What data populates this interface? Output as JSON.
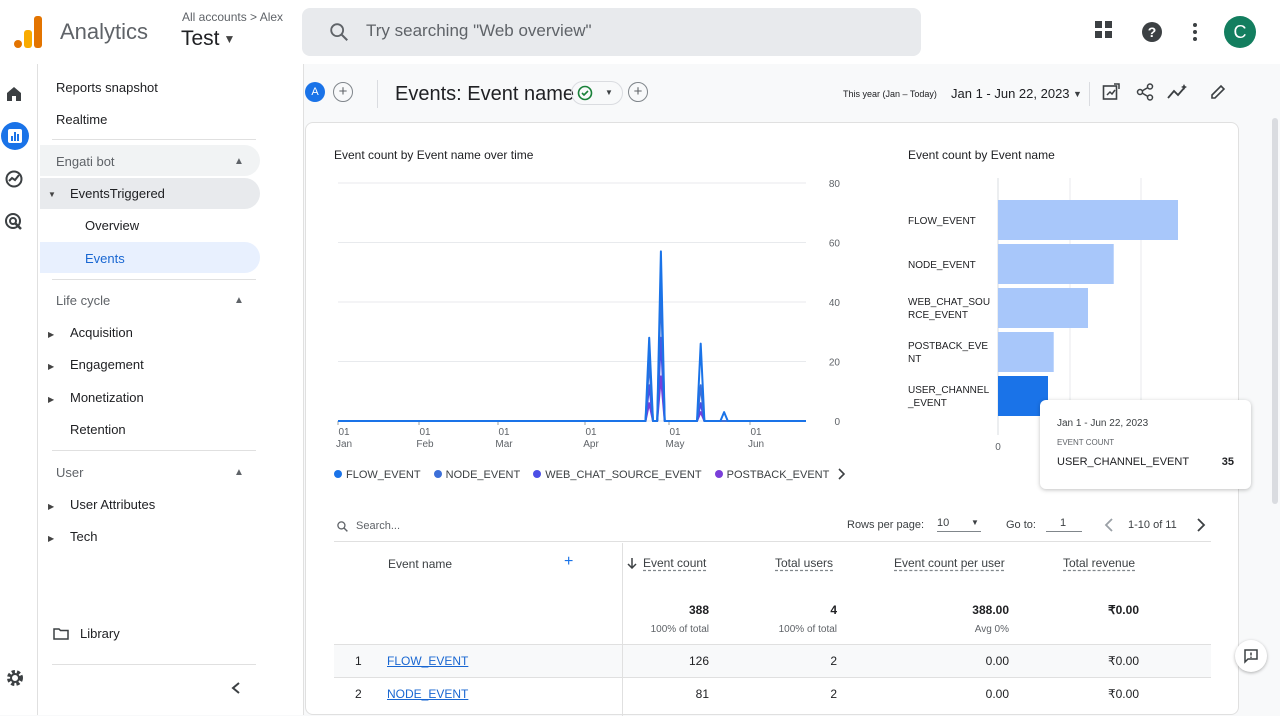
{
  "app": {
    "name": "Analytics",
    "breadcrumb": "All accounts > Alex",
    "property": "Test"
  },
  "search": {
    "placeholder": "Try searching \"Web overview\""
  },
  "user": {
    "avatar_letter": "C"
  },
  "nav": {
    "reports_snapshot": "Reports snapshot",
    "realtime": "Realtime",
    "group1": {
      "title": "Engati bot",
      "folder": "EventsTriggered",
      "items": [
        "Overview",
        "Events"
      ]
    },
    "group2": {
      "title": "Life cycle",
      "items": [
        "Acquisition",
        "Engagement",
        "Monetization",
        "Retention"
      ]
    },
    "group3": {
      "title": "User",
      "items": [
        "User Attributes",
        "Tech"
      ]
    },
    "library": "Library"
  },
  "header": {
    "comparison_badge": "A",
    "title": "Events: Event name",
    "date_label": "This year (Jan – Today)",
    "date_value": "Jan 1 - Jun 22, 2023"
  },
  "line_chart": {
    "title": "Event count by Event name over time",
    "y_ticks": [
      "80",
      "60",
      "40",
      "20",
      "0"
    ],
    "x_ticks": [
      {
        "d": "01",
        "m": "Jan"
      },
      {
        "d": "01",
        "m": "Feb"
      },
      {
        "d": "01",
        "m": "Mar"
      },
      {
        "d": "01",
        "m": "Apr"
      },
      {
        "d": "01",
        "m": "May"
      },
      {
        "d": "01",
        "m": "Jun"
      }
    ],
    "legend": [
      "FLOW_EVENT",
      "NODE_EVENT",
      "WEB_CHAT_SOURCE_EVENT",
      "POSTBACK_EVENT"
    ]
  },
  "bar_chart": {
    "title": "Event count by Event name",
    "categories": [
      "FLOW_EVENT",
      "NODE_EVENT",
      "WEB_CHAT_SOU\nRCE_EVENT",
      "POSTBACK_EVE\nNT",
      "USER_CHANNEL\n_EVENT"
    ],
    "x_tick_zero": "0"
  },
  "chart_data": [
    {
      "type": "line",
      "title": "Event count by Event name over time",
      "x": [
        "Jan 1",
        "Feb 1",
        "Mar 1",
        "Apr 1",
        "May 1",
        "Jun 1"
      ],
      "ylim": [
        0,
        80
      ],
      "series": [
        {
          "name": "FLOW_EVENT",
          "color": "#1a73e8",
          "peaks": [
            [
              0.665,
              28
            ],
            [
              0.69,
              57
            ],
            [
              0.715,
              0
            ],
            [
              0.775,
              26
            ],
            [
              0.825,
              3
            ]
          ]
        },
        {
          "name": "NODE_EVENT",
          "color": "#3c6fd8",
          "peaks": [
            [
              0.665,
              20
            ],
            [
              0.69,
              45
            ],
            [
              0.775,
              12
            ]
          ]
        },
        {
          "name": "WEB_CHAT_SOURCE_EVENT",
          "color": "#4b4fe6",
          "peaks": [
            [
              0.665,
              12
            ],
            [
              0.69,
              28
            ],
            [
              0.775,
              6
            ]
          ]
        },
        {
          "name": "POSTBACK_EVENT",
          "color": "#7a3fd9",
          "peaks": [
            [
              0.665,
              6
            ],
            [
              0.69,
              15
            ],
            [
              0.775,
              3
            ]
          ]
        }
      ]
    },
    {
      "type": "bar",
      "title": "Event count by Event name",
      "categories": [
        "FLOW_EVENT",
        "NODE_EVENT",
        "WEB_CHAT_SOURCE_EVENT",
        "POSTBACK_EVENT",
        "USER_CHANNEL_EVENT"
      ],
      "values": [
        126,
        81,
        63,
        39,
        35
      ],
      "highlight": "USER_CHANNEL_EVENT"
    }
  ],
  "tooltip": {
    "date": "Jan 1 - Jun 22, 2023",
    "metric": "EVENT COUNT",
    "name": "USER_CHANNEL_EVENT",
    "value": "35"
  },
  "table": {
    "search_placeholder": "Search...",
    "rows_per_page_label": "Rows per page:",
    "rows_per_page": "10",
    "goto_label": "Go to:",
    "goto_value": "1",
    "range": "1-10 of 11",
    "columns": [
      "Event name",
      "Event count",
      "Total users",
      "Event count per user",
      "Total revenue"
    ],
    "totals": [
      "388",
      "4",
      "388.00",
      "₹0.00"
    ],
    "totals_sub": [
      "100% of total",
      "100% of total",
      "Avg 0%"
    ],
    "rows": [
      {
        "n": "1",
        "name": "FLOW_EVENT",
        "count": "126",
        "users": "2",
        "per_user": "0.00",
        "revenue": "₹0.00"
      },
      {
        "n": "2",
        "name": "NODE_EVENT",
        "count": "81",
        "users": "2",
        "per_user": "0.00",
        "revenue": "₹0.00"
      }
    ]
  },
  "colors": {
    "accent": "#1a73e8",
    "bar": "#a8c7fa",
    "bar_highlight": "#1a73e8",
    "avatar": "#137e5f"
  }
}
